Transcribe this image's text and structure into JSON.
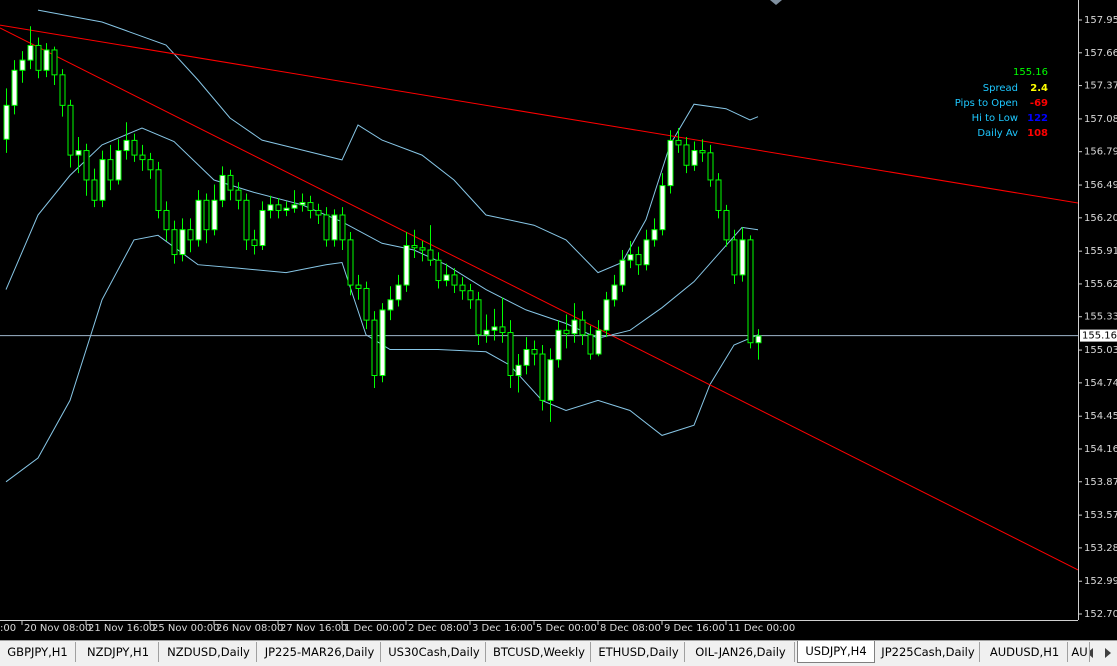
{
  "chart_data": {
    "type": "candlestick",
    "symbol_price": 155.163,
    "symbol_price_label": "155.163",
    "price_line_color": "#9fb6cc",
    "candle_color": "#00ff00",
    "bull_fill": "#ffffff",
    "bear_fill": "#000000",
    "x_label_clipped": ":00",
    "categories": [
      null,
      null,
      "20 Nov 08:00",
      null,
      null,
      null,
      null,
      null,
      null,
      null,
      "21 Nov 16:00",
      null,
      null,
      null,
      null,
      null,
      null,
      null,
      "25 Nov 00:00",
      null,
      null,
      null,
      null,
      null,
      null,
      null,
      "26 Nov 08:00",
      null,
      null,
      null,
      null,
      null,
      null,
      null,
      "27 Nov 16:00",
      null,
      null,
      null,
      null,
      null,
      null,
      null,
      "1 Dec 00:00",
      null,
      null,
      null,
      null,
      null,
      null,
      null,
      "2 Dec 08:00",
      null,
      null,
      null,
      null,
      null,
      null,
      null,
      "3 Dec 16:00",
      null,
      null,
      null,
      null,
      null,
      null,
      null,
      "5 Dec 00:00",
      null,
      null,
      null,
      null,
      null,
      null,
      null,
      "8 Dec 08:00",
      null,
      null,
      null,
      null,
      null,
      null,
      null,
      "9 Dec 16:00",
      null,
      null,
      null,
      null,
      null,
      null,
      null,
      "11 Dec 00:00",
      null,
      null,
      null,
      null
    ],
    "open": [
      156.9,
      157.2,
      157.51,
      157.6,
      157.73,
      157.51,
      157.69,
      157.47,
      157.2,
      156.76,
      156.8,
      156.54,
      156.36,
      156.72,
      156.54,
      156.8,
      156.89,
      156.76,
      156.72,
      156.63,
      156.27,
      156.1,
      155.88,
      156.1,
      156.01,
      156.36,
      156.1,
      156.36,
      156.58,
      156.45,
      156.36,
      156.01,
      155.96,
      156.27,
      156.32,
      156.27,
      156.29,
      156.32,
      156.34,
      156.27,
      156.23,
      156.01,
      156.23,
      156.01,
      155.61,
      155.58,
      155.3,
      154.81,
      155.39,
      155.48,
      155.61,
      155.96,
      155.94,
      155.92,
      155.83,
      155.65,
      155.7,
      155.61,
      155.56,
      155.48,
      155.17,
      155.21,
      155.24,
      155.19,
      154.81,
      154.9,
      155.04,
      155.0,
      154.59,
      154.95,
      155.21,
      155.18,
      155.3,
      155.17,
      155.0,
      155.21,
      155.48,
      155.61,
      155.83,
      155.88,
      155.79,
      156.01,
      156.1,
      156.49,
      156.89,
      156.85,
      156.67,
      156.8,
      156.78,
      156.54,
      156.27,
      156.01,
      155.7,
      156.01,
      155.1
    ],
    "high": [
      157.35,
      157.6,
      157.68,
      157.9,
      157.8,
      157.75,
      157.72,
      157.52,
      157.25,
      156.92,
      156.86,
      156.64,
      156.8,
      156.85,
      156.9,
      157.05,
      156.95,
      156.85,
      156.78,
      156.7,
      156.35,
      156.18,
      156.2,
      156.2,
      156.45,
      156.42,
      156.5,
      156.66,
      156.63,
      156.52,
      156.42,
      156.1,
      156.35,
      156.4,
      156.38,
      156.35,
      156.45,
      156.42,
      156.4,
      156.33,
      156.3,
      156.28,
      156.3,
      156.08,
      155.7,
      155.64,
      155.38,
      155.45,
      155.6,
      155.7,
      156.08,
      156.1,
      156.0,
      156.14,
      155.9,
      155.8,
      155.76,
      155.68,
      155.62,
      155.55,
      155.35,
      155.4,
      155.5,
      155.3,
      155.0,
      155.15,
      155.12,
      155.08,
      155.05,
      155.3,
      155.35,
      155.45,
      155.38,
      155.25,
      155.3,
      155.55,
      155.7,
      155.92,
      156.0,
      155.95,
      156.1,
      156.2,
      156.6,
      156.98,
      157.0,
      156.92,
      156.88,
      156.9,
      156.85,
      156.6,
      156.32,
      156.1,
      156.12,
      156.05,
      155.22
    ],
    "low": [
      156.78,
      157.12,
      157.4,
      157.52,
      157.44,
      157.45,
      157.38,
      157.1,
      156.65,
      156.6,
      156.4,
      156.3,
      156.3,
      156.45,
      156.5,
      156.72,
      156.7,
      156.62,
      156.55,
      156.2,
      156.0,
      155.8,
      155.82,
      155.9,
      155.95,
      155.98,
      156.05,
      156.3,
      156.36,
      156.28,
      155.92,
      155.88,
      155.92,
      156.2,
      156.2,
      156.22,
      156.25,
      156.26,
      156.2,
      156.15,
      155.95,
      155.95,
      155.92,
      155.52,
      155.48,
      155.22,
      154.7,
      154.75,
      155.3,
      155.42,
      155.55,
      155.85,
      155.82,
      155.78,
      155.58,
      155.6,
      155.54,
      155.48,
      155.4,
      155.08,
      155.1,
      155.12,
      155.1,
      154.7,
      154.66,
      154.82,
      154.9,
      154.5,
      154.4,
      154.88,
      155.05,
      155.1,
      155.08,
      154.95,
      154.98,
      155.15,
      155.42,
      155.55,
      155.76,
      155.7,
      155.74,
      155.95,
      156.05,
      156.42,
      156.78,
      156.6,
      156.62,
      156.7,
      156.48,
      156.2,
      155.95,
      155.62,
      155.64,
      155.05,
      154.95
    ],
    "close": [
      157.2,
      157.51,
      157.6,
      157.73,
      157.51,
      157.69,
      157.47,
      157.2,
      156.76,
      156.8,
      156.54,
      156.36,
      156.72,
      156.54,
      156.8,
      156.89,
      156.76,
      156.72,
      156.63,
      156.27,
      156.1,
      155.88,
      156.1,
      156.01,
      156.36,
      156.1,
      156.36,
      156.58,
      156.45,
      156.36,
      156.01,
      155.96,
      156.27,
      156.32,
      156.27,
      156.29,
      156.32,
      156.34,
      156.27,
      156.23,
      156.01,
      156.23,
      156.01,
      155.61,
      155.58,
      155.3,
      154.81,
      155.39,
      155.48,
      155.61,
      155.96,
      155.94,
      155.92,
      155.83,
      155.65,
      155.7,
      155.61,
      155.56,
      155.48,
      155.17,
      155.21,
      155.24,
      155.19,
      154.81,
      154.9,
      155.04,
      155.0,
      154.59,
      154.95,
      155.21,
      155.18,
      155.3,
      155.17,
      155.0,
      155.21,
      155.48,
      155.61,
      155.83,
      155.88,
      155.79,
      156.01,
      156.1,
      156.49,
      156.89,
      156.85,
      156.67,
      156.8,
      156.78,
      156.54,
      156.27,
      156.01,
      155.7,
      156.01,
      155.1,
      155.16
    ],
    "bands": [
      {
        "color": "#87c6e6",
        "x": [
          4,
          12,
          20,
          24,
          28,
          32,
          37,
          42,
          44,
          47,
          52,
          56,
          60,
          66,
          70,
          74,
          77,
          80,
          83,
          86,
          90,
          93,
          94
        ],
        "values": [
          158.043,
          157.937,
          157.734,
          157.424,
          157.088,
          156.893,
          156.805,
          156.717,
          157.026,
          156.893,
          156.76,
          156.54,
          156.23,
          156.14,
          156.01,
          155.72,
          155.81,
          156.19,
          156.85,
          157.21,
          157.17,
          157.07,
          157.1
        ]
      },
      {
        "color": "#87c6e6",
        "x": [
          0,
          4,
          8,
          12,
          17,
          21,
          26,
          31,
          37,
          42,
          47,
          51,
          55,
          60,
          65,
          70,
          74,
          78,
          82,
          86,
          89,
          92,
          94
        ],
        "values": [
          155.57,
          156.23,
          156.58,
          156.85,
          157.0,
          156.88,
          156.54,
          156.43,
          156.32,
          156.17,
          155.98,
          155.92,
          155.79,
          155.57,
          155.39,
          155.27,
          155.14,
          155.21,
          155.41,
          155.64,
          155.88,
          156.12,
          156.1
        ]
      },
      {
        "color": "#87c6e6",
        "x": [
          0,
          4,
          8,
          12,
          16,
          19,
          24,
          29,
          35,
          40,
          42,
          45,
          48,
          54,
          60,
          63,
          67,
          70,
          74,
          78,
          82,
          86,
          88,
          91,
          94
        ],
        "values": [
          153.87,
          154.08,
          154.59,
          155.48,
          156.01,
          156.05,
          155.79,
          155.76,
          155.72,
          155.79,
          155.81,
          155.17,
          155.04,
          155.04,
          155.02,
          154.9,
          154.59,
          154.5,
          154.59,
          154.5,
          154.28,
          154.37,
          154.73,
          155.08,
          155.17
        ]
      }
    ],
    "trendlines": [
      {
        "color": "#ff0000",
        "x": [
          -0.75,
          134
        ],
        "values": [
          157.91,
          156.336
        ]
      },
      {
        "color": "#ff0000",
        "x": [
          -0.75,
          134
        ],
        "values": [
          157.884,
          153.09
        ]
      }
    ],
    "ylim": [
      152.647,
      158.132
    ],
    "yticks": [
      157.955,
      157.665,
      157.375,
      {
        "value": 157.08,
        "label": "157.080"
      },
      156.79,
      156.495,
      156.205,
      {
        "value": 155.91,
        "label": "155.910"
      },
      {
        "value": 155.62,
        "label": "155.620"
      },
      {
        "value": 155.33,
        "label": "155.330"
      },
      155.035,
      154.745,
      {
        "value": 154.45,
        "label": "154.450"
      },
      {
        "value": 154.16,
        "label": "154.160"
      },
      {
        "value": 153.87,
        "label": "153.870"
      },
      153.575,
      153.285,
      {
        "value": 152.99,
        "label": "152.990"
      },
      {
        "value": 152.7,
        "label": "152.700"
      }
    ]
  },
  "info_panel": {
    "price": "155.16",
    "rows": [
      {
        "label": "Spread",
        "value": "2.4",
        "value_color": "#ffff00"
      },
      {
        "label": "Pips to Open",
        "value": "-69",
        "value_color": "#ff0000"
      },
      {
        "label": "Hi to Low",
        "value": "122",
        "value_color": "#0000ff"
      },
      {
        "label": "Daily Av",
        "value": "108",
        "value_color": "#ff0000"
      }
    ]
  },
  "tabs": [
    {
      "label": "GBPJPY,H1"
    },
    {
      "label": "NZDJPY,H1"
    },
    {
      "label": "NZDUSD,Daily"
    },
    {
      "label": "JP225-MAR26,Daily"
    },
    {
      "label": "US30Cash,Daily"
    },
    {
      "label": "BTCUSD,Weekly"
    },
    {
      "label": "ETHUSD,Daily"
    },
    {
      "label": "OIL-JAN26,Daily"
    },
    {
      "label": "USDJPY,H4",
      "active": true
    },
    {
      "label": "JP225Cash,Daily"
    },
    {
      "label": "AUDUSD,H1"
    },
    {
      "label": "AU"
    }
  ]
}
